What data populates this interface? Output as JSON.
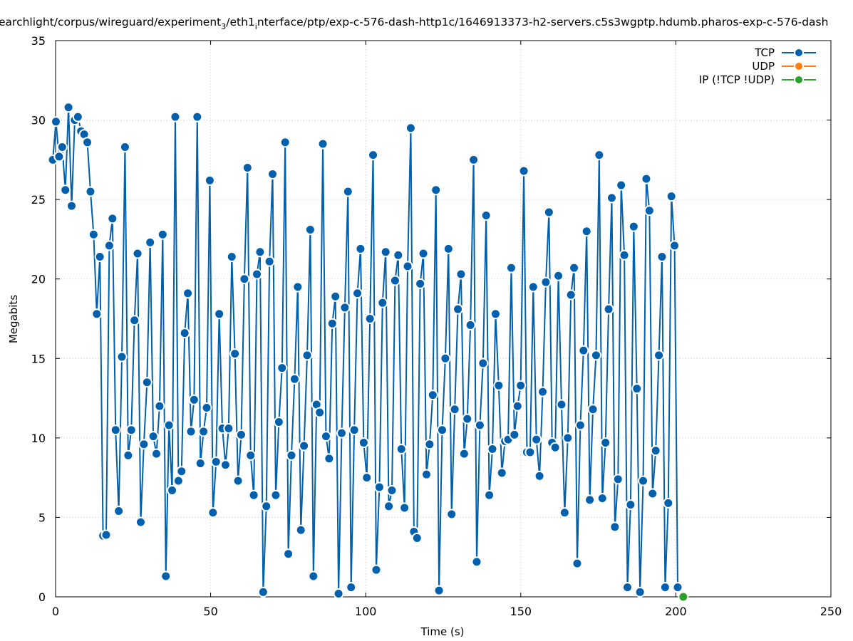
{
  "chart_data": {
    "type": "line",
    "title_parts": [
      "earchlight/corpus/wireguard/experiment",
      "3",
      "/eth1",
      "i",
      "nterface/ptp/exp-c-576-dash-http1c/1646913373-h2-servers.c5s3wgptp.hdumb.pharos-exp-c-576-dash"
    ],
    "xlabel": "Time (s)",
    "ylabel": "Megabits",
    "xlim": [
      0,
      250
    ],
    "ylim": [
      0,
      35
    ],
    "xticks": [
      "0",
      "50",
      "100",
      "150",
      "200",
      "250"
    ],
    "yticks": [
      "0",
      "5",
      "10",
      "15",
      "20",
      "25",
      "30",
      "35"
    ],
    "grid": true,
    "legend_position": "top-right",
    "series": [
      {
        "name": "TCP",
        "color": "#0060ad",
        "x_start": -0.9,
        "x_end": 200.6,
        "y": [
          27.5,
          29.9,
          27.7,
          28.3,
          25.6,
          30.8,
          24.6,
          30.0,
          30.2,
          29.3,
          29.1,
          28.6,
          25.5,
          22.8,
          17.8,
          21.4,
          3.85,
          3.9,
          22.1,
          23.8,
          10.5,
          5.4,
          15.1,
          28.3,
          8.9,
          10.5,
          17.4,
          21.6,
          4.7,
          9.6,
          13.5,
          22.3,
          10.1,
          9.0,
          12.0,
          22.8,
          1.3,
          10.8,
          6.7,
          30.2,
          7.3,
          7.9,
          16.6,
          19.1,
          10.4,
          12.4,
          30.2,
          8.4,
          10.4,
          11.9,
          26.2,
          5.3,
          8.5,
          17.8,
          10.6,
          8.3,
          10.6,
          21.4,
          15.3,
          7.3,
          10.2,
          20.0,
          27.0,
          8.9,
          6.4,
          20.3,
          21.7,
          0.3,
          5.7,
          21.1,
          26.6,
          6.4,
          11.0,
          14.4,
          28.6,
          2.7,
          8.9,
          13.7,
          19.5,
          4.2,
          9.5,
          15.2,
          23.1,
          1.3,
          12.1,
          11.6,
          28.5,
          10.1,
          8.7,
          17.2,
          18.9,
          0.2,
          10.3,
          18.2,
          25.5,
          0.6,
          10.5,
          19.1,
          21.9,
          9.7,
          7.5,
          17.5,
          27.8,
          1.7,
          6.9,
          18.5,
          21.7,
          5.7,
          6.7,
          19.9,
          21.5,
          9.3,
          5.6,
          20.8,
          29.5,
          4.1,
          3.7,
          19.7,
          21.6,
          7.7,
          9.6,
          12.7,
          25.6,
          0.4,
          10.5,
          15.0,
          21.9,
          5.2,
          11.8,
          18.1,
          20.3,
          9.0,
          11.2,
          17.1,
          27.5,
          2.2,
          10.8,
          14.7,
          24.0,
          6.4,
          9.3,
          17.8,
          13.3,
          7.8,
          9.8,
          9.9,
          20.7,
          10.2,
          12.0,
          13.3,
          26.8,
          9.1,
          9.1,
          19.5,
          9.9,
          7.6,
          12.9,
          19.8,
          24.2,
          9.7,
          9.4,
          20.2,
          12.1,
          5.3,
          10.0,
          19.0,
          20.7,
          2.1,
          10.8,
          15.5,
          23.0,
          6.1,
          11.8,
          15.2,
          27.8,
          6.2,
          9.7,
          18.1,
          25.1,
          4.4,
          7.4,
          25.9,
          21.5,
          0.6,
          5.8,
          23.3,
          13.1,
          0.3,
          7.3,
          26.3,
          24.3,
          6.5,
          9.2,
          15.2,
          21.4,
          0.6,
          5.9,
          25.2,
          22.1,
          0.6
        ]
      },
      {
        "name": "UDP",
        "color": "#ff7f0e",
        "points": []
      },
      {
        "name": "IP (!TCP  !UDP)",
        "color": "#2ca02c",
        "points": [
          [
            202.4,
            0
          ]
        ]
      }
    ]
  }
}
